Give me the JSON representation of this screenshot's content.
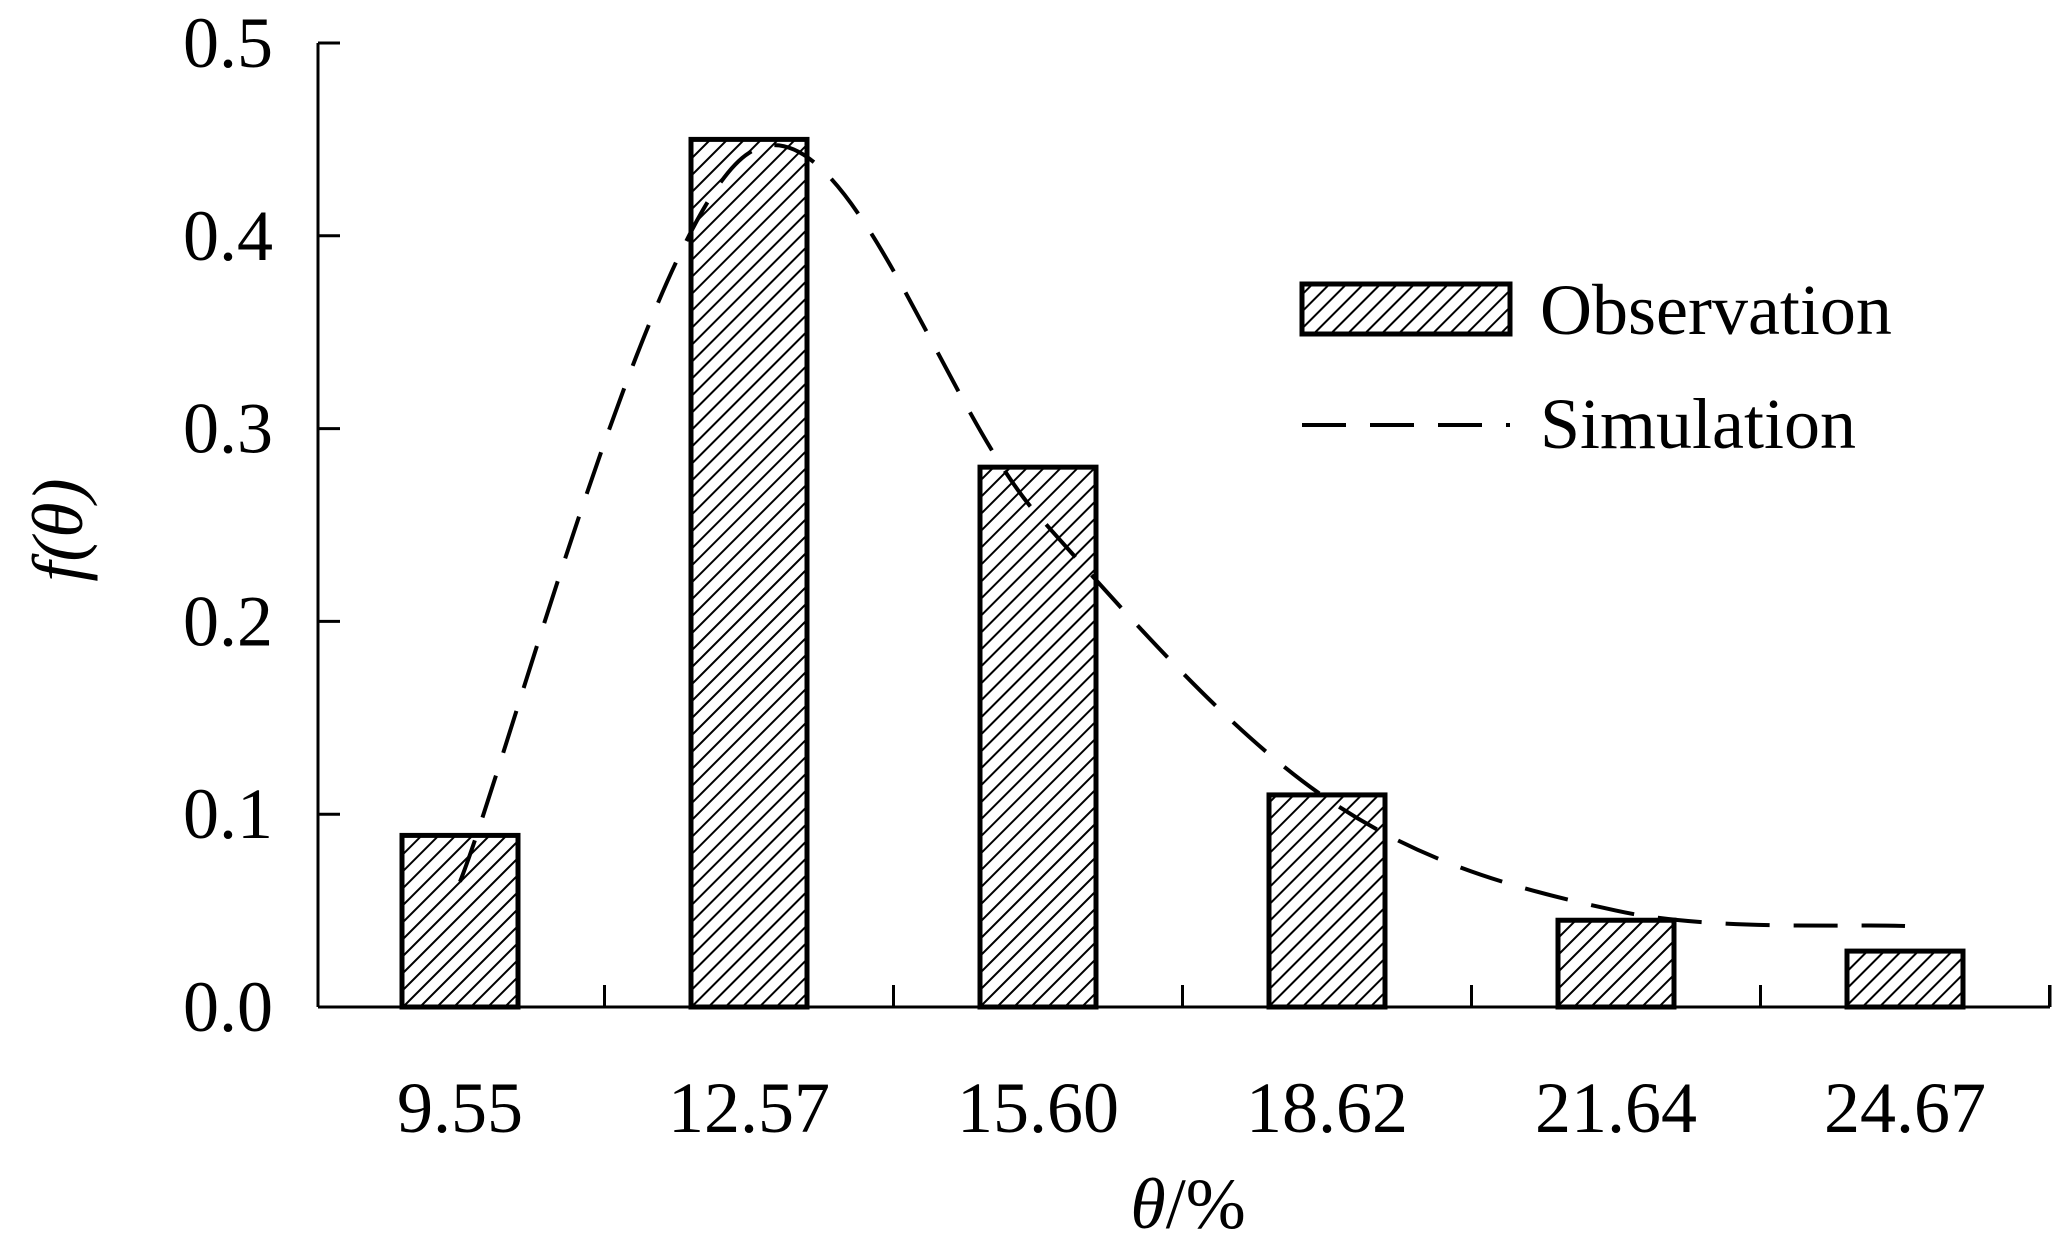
{
  "chart_data": {
    "type": "bar",
    "categories": [
      "9.55",
      "12.57",
      "15.60",
      "18.62",
      "21.64",
      "24.67"
    ],
    "series": [
      {
        "name": "Observation",
        "type": "bar",
        "values": [
          0.089,
          0.45,
          0.28,
          0.11,
          0.045,
          0.029
        ]
      },
      {
        "name": "Simulation",
        "type": "line",
        "values": [
          0.065,
          0.443,
          0.255,
          0.108,
          0.05,
          0.042
        ]
      }
    ],
    "ylim": [
      0,
      0.5
    ],
    "yticks": [
      "0.0",
      "0.1",
      "0.2",
      "0.3",
      "0.4",
      "0.5"
    ],
    "ylabel_prefix": "f(",
    "ylabel_symbol": "θ",
    "ylabel_suffix": ")",
    "xlabel_symbol": "θ",
    "xlabel_suffix": "/%",
    "legend_position": "top-right",
    "grid": false,
    "bar_fill": "hatched"
  }
}
